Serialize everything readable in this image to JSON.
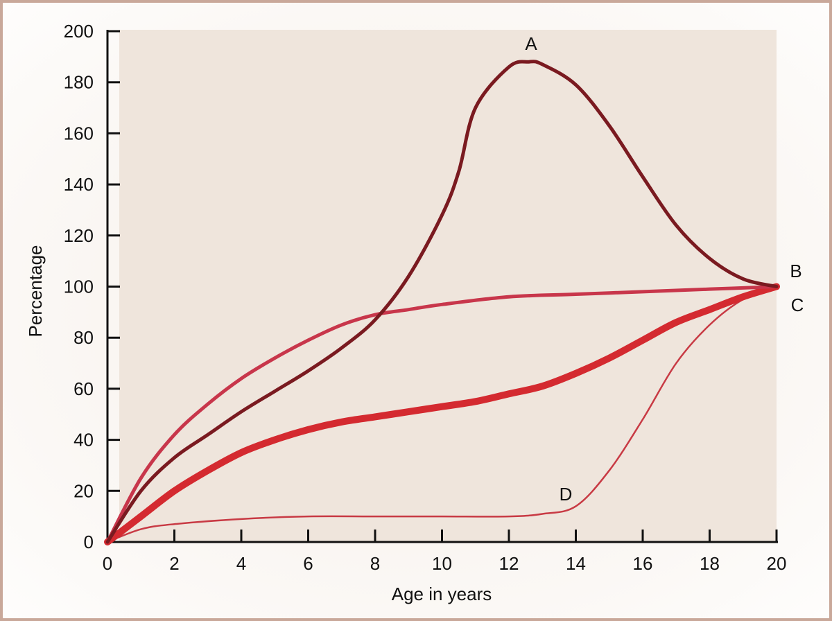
{
  "chart_data": {
    "type": "line",
    "title": "",
    "xlabel": "Age in years",
    "ylabel": "Percentage",
    "xlim": [
      0,
      20
    ],
    "ylim": [
      0,
      200
    ],
    "xticks": [
      0,
      2,
      4,
      6,
      8,
      10,
      12,
      14,
      16,
      18,
      20
    ],
    "yticks": [
      0,
      20,
      40,
      60,
      80,
      100,
      120,
      140,
      160,
      180,
      200
    ],
    "grid": false,
    "series": [
      {
        "name": "A",
        "color": "#7a1a20",
        "x": [
          0,
          1,
          2,
          3,
          4,
          5,
          6,
          7,
          8,
          9,
          10,
          10.5,
          11,
          12,
          12.6,
          13,
          14,
          15,
          16,
          17,
          18,
          19,
          20
        ],
        "y": [
          0,
          20,
          33,
          42,
          51,
          59,
          67,
          76,
          87,
          104,
          128,
          145,
          170,
          186,
          188,
          187,
          179,
          163,
          143,
          124,
          111,
          103,
          100
        ]
      },
      {
        "name": "B",
        "color": "#c8364b",
        "x": [
          0,
          1,
          2,
          3,
          4,
          5,
          6,
          7,
          8,
          9,
          10,
          12,
          14,
          16,
          18,
          20
        ],
        "y": [
          0,
          25,
          42,
          54,
          64,
          72,
          79,
          85,
          89,
          91,
          93,
          96,
          97,
          98,
          99,
          100
        ]
      },
      {
        "name": "C",
        "color": "#d42a30",
        "x": [
          0,
          1,
          2,
          3,
          4,
          5,
          6,
          7,
          8,
          9,
          10,
          11,
          12,
          13,
          14,
          15,
          16,
          17,
          18,
          19,
          20
        ],
        "y": [
          0,
          10,
          20,
          28,
          35,
          40,
          44,
          47,
          49,
          51,
          53,
          55,
          58,
          61,
          66,
          72,
          79,
          86,
          91,
          96,
          100
        ]
      },
      {
        "name": "D",
        "color": "#c83a44",
        "x": [
          0,
          1,
          2,
          4,
          6,
          8,
          10,
          12,
          13,
          14,
          15,
          16,
          17,
          18,
          19,
          20
        ],
        "y": [
          0,
          5,
          7,
          9,
          10,
          10,
          10,
          10,
          11,
          14,
          28,
          48,
          70,
          85,
          95,
          100
        ]
      }
    ],
    "plot_background": "#efe5dc"
  }
}
